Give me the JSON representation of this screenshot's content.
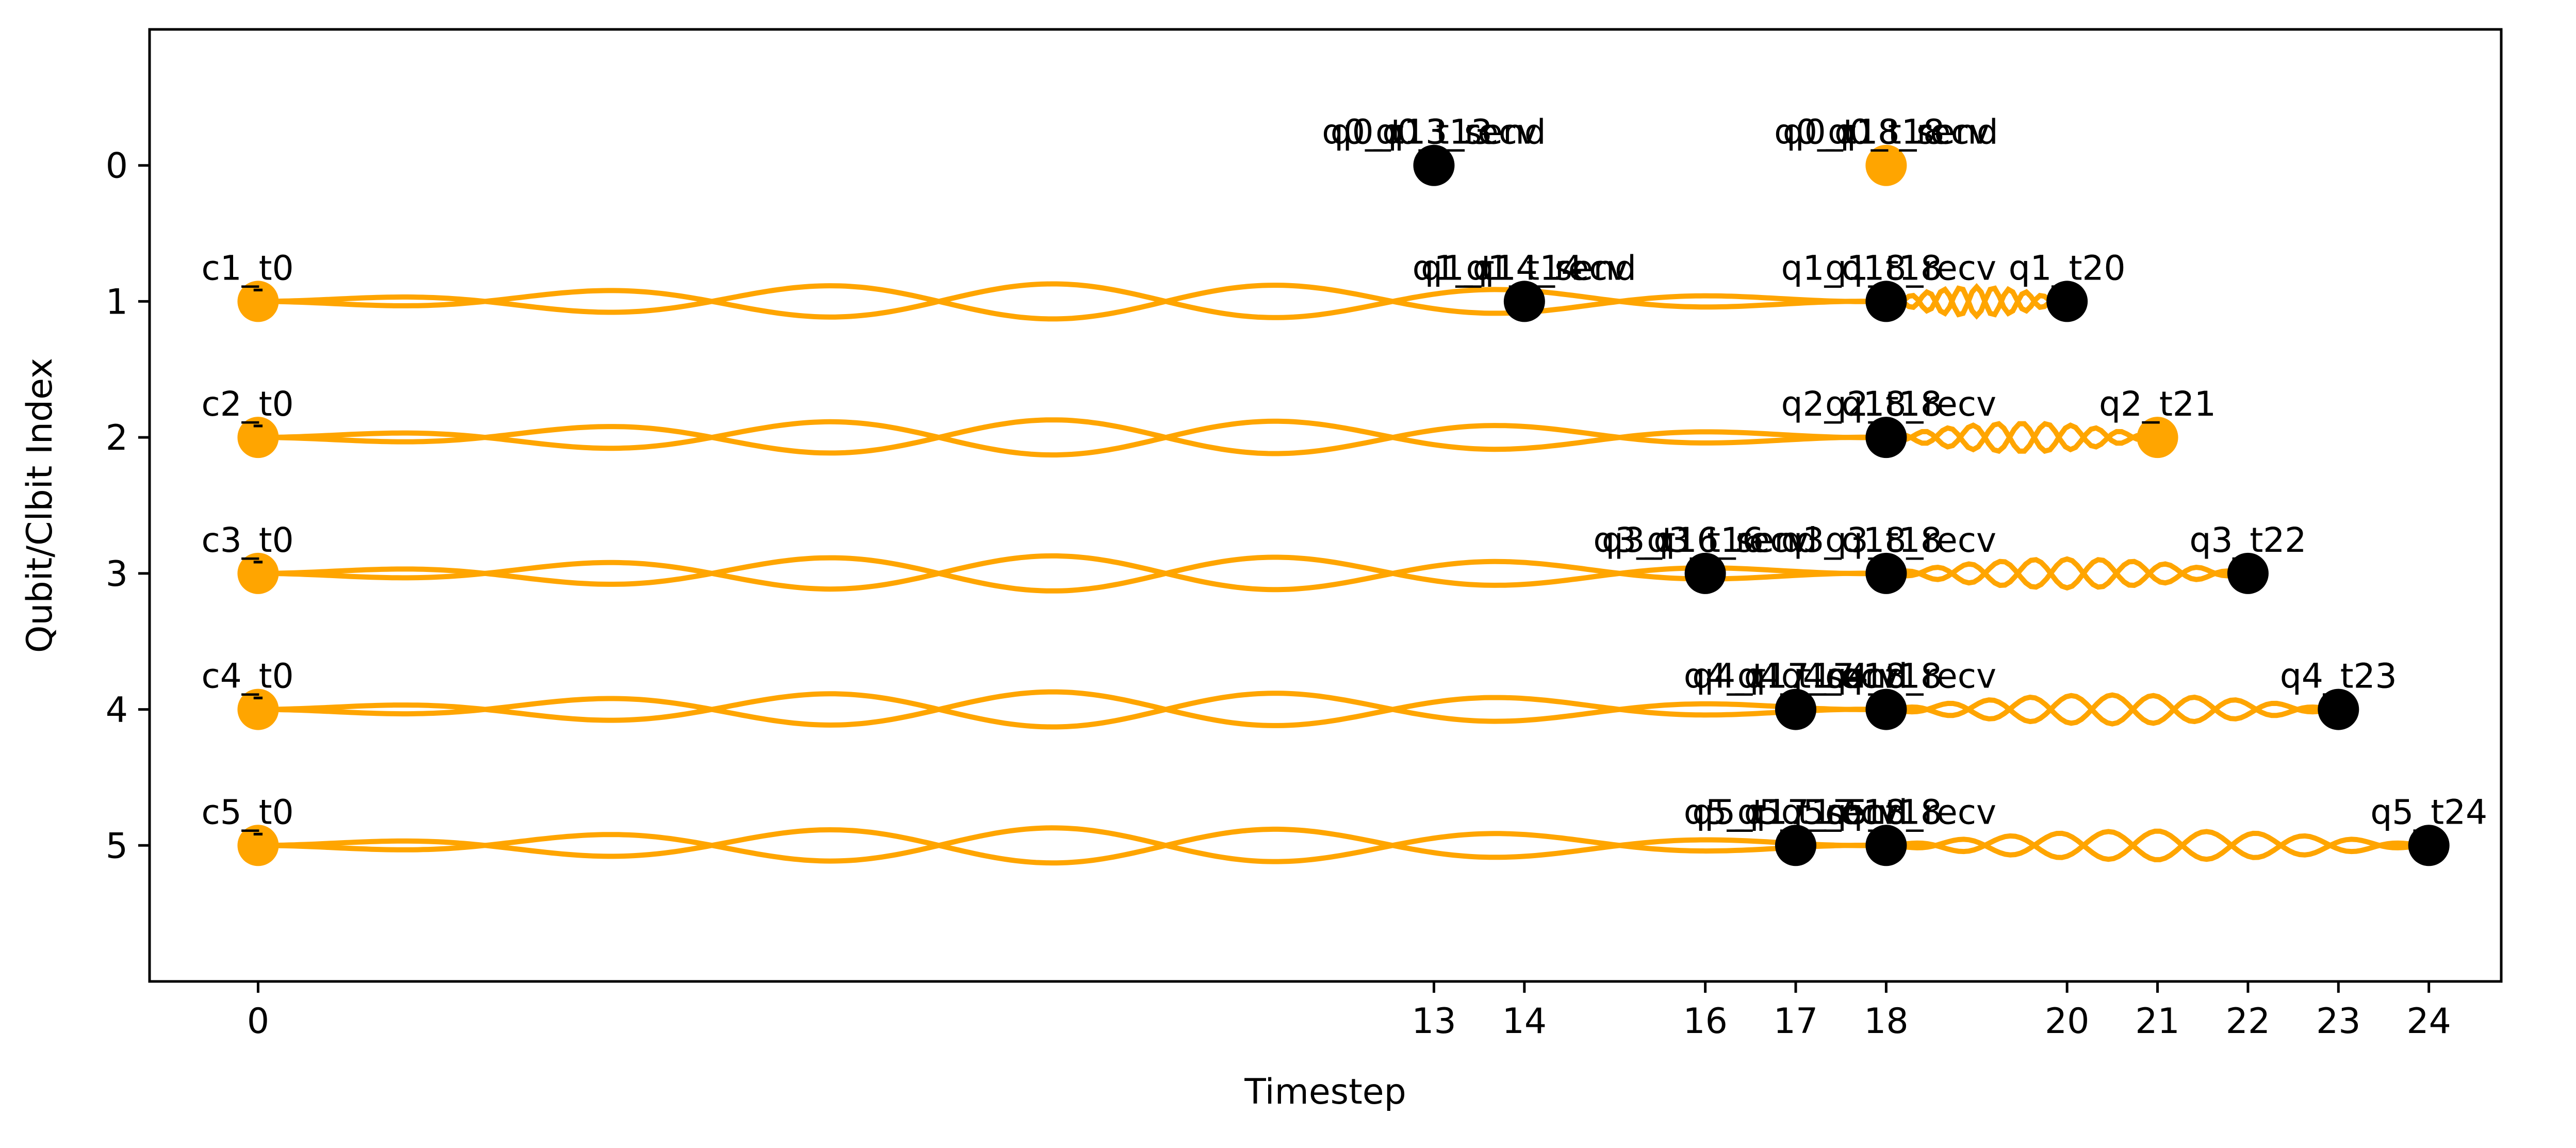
{
  "chart_data": {
    "type": "scatter",
    "title": "",
    "xlabel": "Timestep",
    "ylabel": "Qubit/Clbit Index",
    "xlim": [
      -1.2,
      24.8
    ],
    "ylim": [
      -1.0,
      6.0
    ],
    "y_inverted": true,
    "x_ticks": [
      0,
      13,
      14,
      16,
      17,
      18,
      20,
      21,
      22,
      23,
      24
    ],
    "y_ticks": [
      0,
      1,
      2,
      3,
      4,
      5
    ],
    "grid": false,
    "legend": "none",
    "colors": {
      "orange": "#FFA500",
      "black": "#000000"
    },
    "points": [
      {
        "x": 13,
        "y": 0,
        "color": "black",
        "labels": [
          "q0_t13",
          "q0_q13_send",
          "q0_t13_recv"
        ]
      },
      {
        "x": 18,
        "y": 0,
        "color": "orange",
        "labels": [
          "q0_t18",
          "q0_q18_send",
          "q0_t18_recv"
        ]
      },
      {
        "x": 0,
        "y": 1,
        "color": "orange",
        "labels": [
          "c1_t0"
        ],
        "marker_text": "-"
      },
      {
        "x": 14,
        "y": 1,
        "color": "black",
        "labels": [
          "q1_t14",
          "q1_q14_send",
          "q1_t14_recv"
        ]
      },
      {
        "x": 18,
        "y": 1,
        "color": "black",
        "labels": [
          "q1_t18",
          "q1_q18_recv"
        ]
      },
      {
        "x": 20,
        "y": 1,
        "color": "black",
        "labels": [
          "q1_t20",
          "q1_t20"
        ]
      },
      {
        "x": 0,
        "y": 2,
        "color": "orange",
        "labels": [
          "c2_t0"
        ],
        "marker_text": "-"
      },
      {
        "x": 18,
        "y": 2,
        "color": "black",
        "labels": [
          "q2_t18",
          "q2_q18_recv"
        ]
      },
      {
        "x": 21,
        "y": 2,
        "color": "orange",
        "labels": [
          "q2_t21",
          "q2_t21"
        ]
      },
      {
        "x": 0,
        "y": 3,
        "color": "orange",
        "labels": [
          "c3_t0"
        ],
        "marker_text": "-"
      },
      {
        "x": 16,
        "y": 3,
        "color": "black",
        "labels": [
          "q3_t16",
          "q3_q16_send",
          "q3_t16_recv"
        ]
      },
      {
        "x": 18,
        "y": 3,
        "color": "black",
        "labels": [
          "q3_t18",
          "q3_q18_recv"
        ]
      },
      {
        "x": 22,
        "y": 3,
        "color": "black",
        "labels": [
          "q3_t22",
          "q3_t22"
        ]
      },
      {
        "x": 0,
        "y": 4,
        "color": "orange",
        "labels": [
          "c4_t0"
        ],
        "marker_text": "-"
      },
      {
        "x": 17,
        "y": 4,
        "color": "black",
        "labels": [
          "q4_t17",
          "q4_q17_send",
          "q4_t17_recv"
        ]
      },
      {
        "x": 18,
        "y": 4,
        "color": "black",
        "labels": [
          "q4_t18",
          "q4_q18_recv"
        ]
      },
      {
        "x": 23,
        "y": 4,
        "color": "black",
        "labels": [
          "q4_t23",
          "q4_t23"
        ]
      },
      {
        "x": 0,
        "y": 5,
        "color": "orange",
        "labels": [
          "c5_t0"
        ],
        "marker_text": "-"
      },
      {
        "x": 17,
        "y": 5,
        "color": "black",
        "labels": [
          "q5_t17",
          "q5_q17_send",
          "q5_t17_recv"
        ]
      },
      {
        "x": 18,
        "y": 5,
        "color": "black",
        "labels": [
          "q5_t18",
          "q5_q18_recv"
        ]
      },
      {
        "x": 24,
        "y": 5,
        "color": "black",
        "labels": [
          "q5_t24",
          "q5_t24"
        ]
      }
    ],
    "edges": [
      {
        "from": [
          0,
          1
        ],
        "to": [
          18,
          1
        ],
        "style": "wavy",
        "color": "orange"
      },
      {
        "from": [
          18,
          1
        ],
        "to": [
          20,
          1
        ],
        "style": "wavy",
        "color": "orange"
      },
      {
        "from": [
          0,
          2
        ],
        "to": [
          18,
          2
        ],
        "style": "wavy",
        "color": "orange"
      },
      {
        "from": [
          18,
          2
        ],
        "to": [
          21,
          2
        ],
        "style": "wavy",
        "color": "orange"
      },
      {
        "from": [
          0,
          3
        ],
        "to": [
          18,
          3
        ],
        "style": "wavy",
        "color": "orange"
      },
      {
        "from": [
          18,
          3
        ],
        "to": [
          22,
          3
        ],
        "style": "wavy",
        "color": "orange"
      },
      {
        "from": [
          0,
          4
        ],
        "to": [
          18,
          4
        ],
        "style": "wavy",
        "color": "orange"
      },
      {
        "from": [
          18,
          4
        ],
        "to": [
          23,
          4
        ],
        "style": "wavy",
        "color": "orange"
      },
      {
        "from": [
          0,
          5
        ],
        "to": [
          18,
          5
        ],
        "style": "wavy",
        "color": "orange"
      },
      {
        "from": [
          18,
          5
        ],
        "to": [
          24,
          5
        ],
        "style": "wavy",
        "color": "orange"
      }
    ]
  }
}
